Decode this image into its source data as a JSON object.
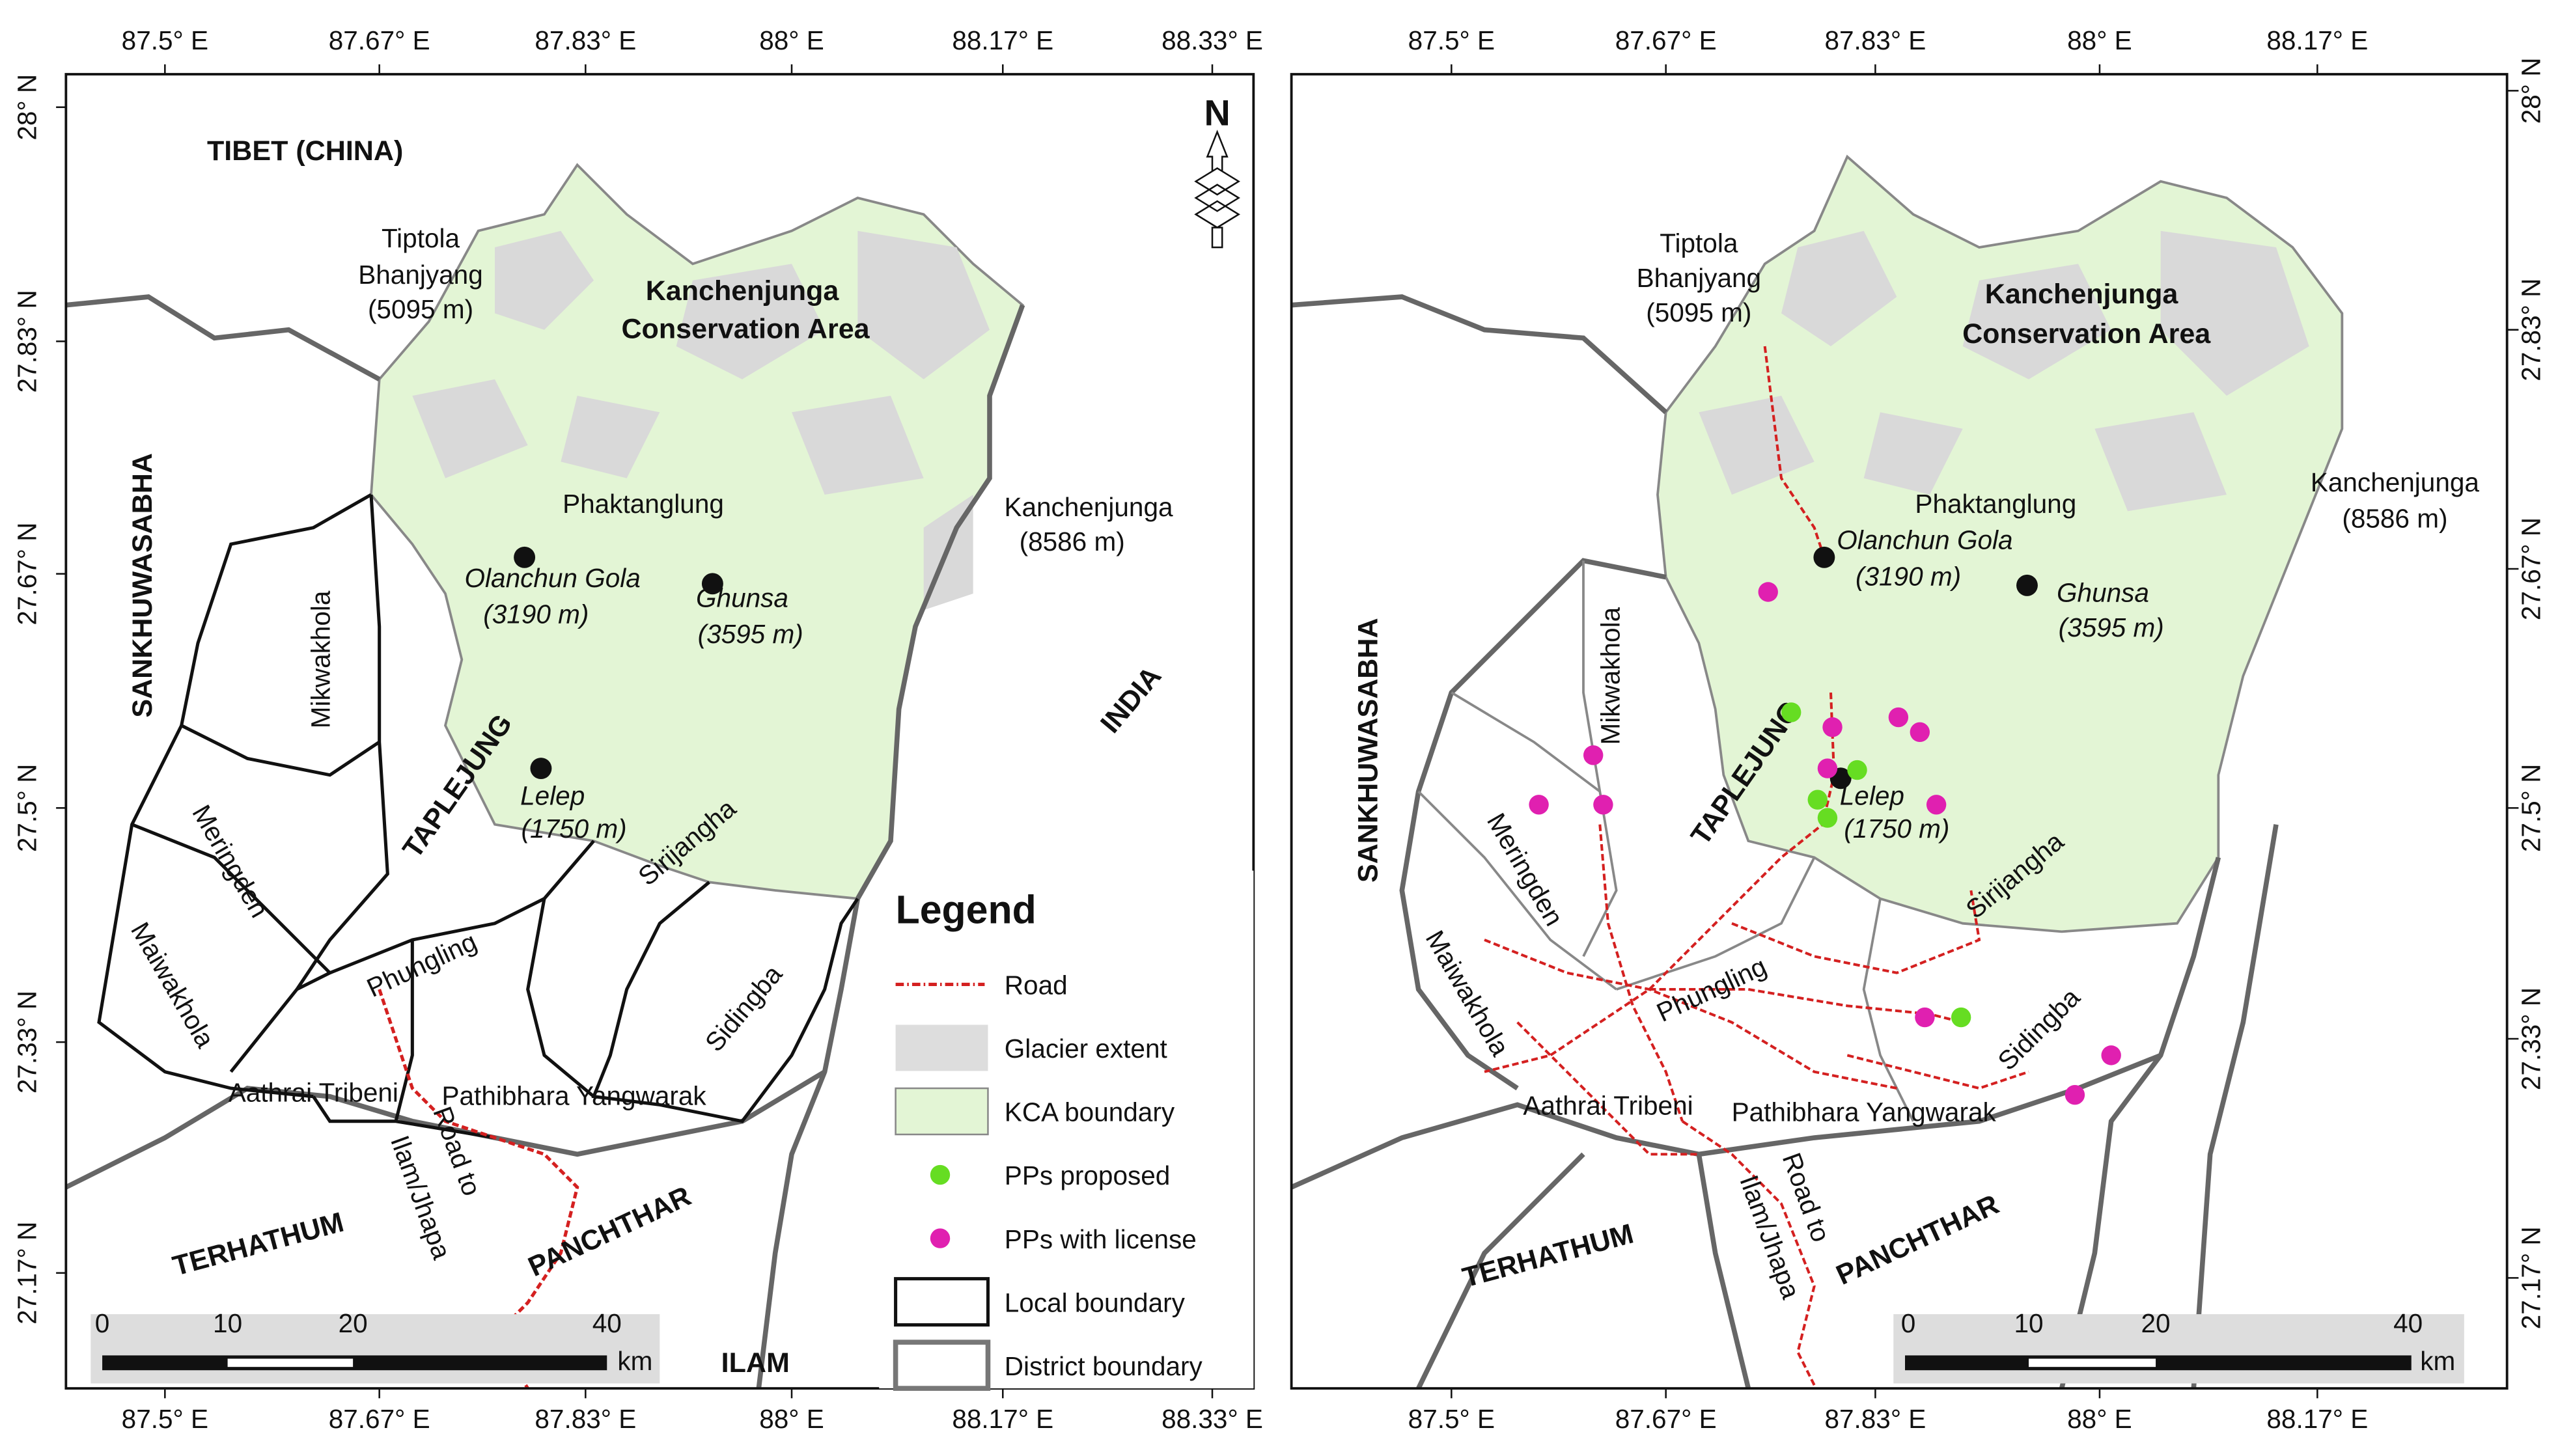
{
  "left_map": {
    "top_ticks": [
      "87.5° E",
      "87.67° E",
      "87.83° E",
      "88° E",
      "88.17° E",
      "88.33° E"
    ],
    "bottom_ticks": [
      "87.5° E",
      "87.67° E",
      "87.83° E",
      "88° E",
      "88.17° E",
      "88.33° E"
    ],
    "side_ticks": [
      "28° N",
      "27.83° N",
      "27.67° N",
      "27.5° N",
      "27.33° N",
      "27.17° N"
    ],
    "north": "N",
    "places": {
      "tibet": "TIBET (CHINA)",
      "tiptola": [
        "Tiptola",
        "Bhanjyang",
        "(5095 m)"
      ],
      "kca": [
        "Kanchenjunga",
        "Conservation Area"
      ],
      "phaktanglung": "Phaktanglung",
      "kanchenjunga": [
        "Kanchenjunga",
        "(8586 m)"
      ],
      "olanchun": [
        "Olanchun Gola",
        "(3190 m)"
      ],
      "ghunsa": [
        "Ghunsa",
        "(3595 m)"
      ],
      "lelep": [
        "Lelep",
        "(1750 m)"
      ],
      "sankhuwasabha": "SANKHUWASABHA",
      "mikwakhola": "Mikwakhola",
      "taplejung": "TAPLEJUNG",
      "india": "INDIA",
      "meringden": "Meringden",
      "maiwakhola": "Maiwakhola",
      "phungling": "Phungling",
      "sirijangha": "Sirijangha",
      "sidingba": "Sidingba",
      "aathrai": "Aathrai Tribeni",
      "pathibhara": "Pathibhara Yangwarak",
      "road": [
        "Road to",
        "Ilam/Jhapa"
      ],
      "terhathum": "TERHATHUM",
      "panchthar": "PANCHTHAR",
      "ilam": "ILAM"
    },
    "scale_bar": {
      "labels": [
        "0",
        "10",
        "20",
        "40"
      ],
      "unit": "km"
    }
  },
  "right_map": {
    "top_ticks": [
      "87.5° E",
      "87.67° E",
      "87.83° E",
      "88° E",
      "88.17° E"
    ],
    "bottom_ticks": [
      "87.5° E",
      "87.67° E",
      "87.83° E",
      "88° E",
      "88.17° E"
    ],
    "side_ticks": [
      "28° N",
      "27.83° N",
      "27.67° N",
      "27.5° N",
      "27.33° N",
      "27.17° N"
    ],
    "places": {
      "tiptola": [
        "Tiptola",
        "Bhanjyang",
        "(5095 m)"
      ],
      "kca": [
        "Kanchenjunga",
        "Conservation Area"
      ],
      "phaktanglung": "Phaktanglung",
      "kanchenjunga": [
        "Kanchenjunga",
        "(8586 m)"
      ],
      "olanchun": [
        "Olanchun Gola",
        "(3190 m)"
      ],
      "ghunsa": [
        "Ghunsa",
        "(3595 m)"
      ],
      "lelep": [
        "Lelep",
        "(1750 m)"
      ],
      "sankhuwasabha": "SANKHUWASABHA",
      "mikwakhola": "Mikwakhola",
      "taplejung": "TAPLEJUNG",
      "meringden": "Meringden",
      "maiwakhola": "Maiwakhola",
      "phungling": "Phungling",
      "sirijangha": "Sirijangha",
      "sidingba": "Sidingba",
      "aathrai": "Aathrai Tribeni",
      "pathibhara": "Pathibhara Yangwarak",
      "road": [
        "Road to",
        "Ilam/Jhapa"
      ],
      "terhathum": "TERHATHUM",
      "panchthar": "PANCHTHAR"
    },
    "scale_bar": {
      "labels": [
        "0",
        "10",
        "20",
        "40"
      ],
      "unit": "km"
    }
  },
  "legend": {
    "title": "Legend",
    "items": [
      "Road",
      "Glacier extent",
      "KCA boundary",
      "PPs proposed",
      "PPs with license",
      "Local boundary",
      "District boundary"
    ]
  }
}
